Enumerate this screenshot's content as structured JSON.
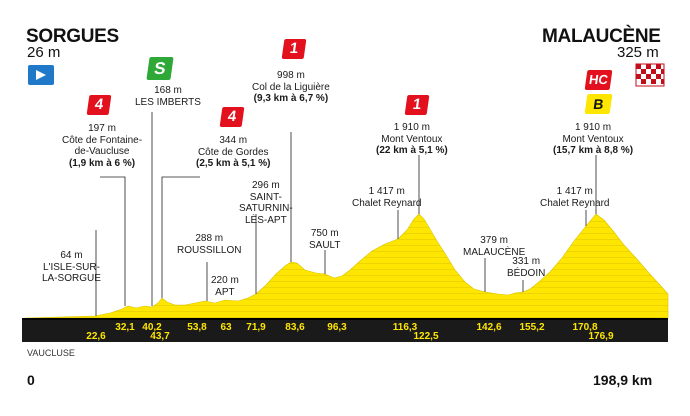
{
  "start": {
    "town": "SORGUES",
    "altitude": "26 m"
  },
  "finish": {
    "town": "MALAUCÈNE",
    "altitude": "325 m"
  },
  "department": "VAUCLUSE",
  "distance": {
    "start": "0",
    "end": "198,9 km"
  },
  "badges": {
    "sprint": "S",
    "cat4": "4",
    "cat1": "1",
    "hc": "HC",
    "bonus": "B"
  },
  "points": [
    {
      "id": "isle",
      "lines": [
        "64 m",
        "L'ISLE-SUR-",
        "LA-SORGUE"
      ]
    },
    {
      "id": "fontaine",
      "lines": [
        "197 m",
        "Côte de Fontaine-",
        "de-Vaucluse"
      ],
      "bold": "(1,9 km à 6 %)"
    },
    {
      "id": "imberts",
      "lines": [
        "168 m",
        "LES IMBERTS"
      ]
    },
    {
      "id": "gordes",
      "lines": [
        "344 m",
        "Côte de Gordes"
      ],
      "bold": "(2,5 km à 5,1 %)"
    },
    {
      "id": "roussillon",
      "lines": [
        "288 m",
        "ROUSSILLON"
      ]
    },
    {
      "id": "apt",
      "lines": [
        "220 m",
        "APT"
      ]
    },
    {
      "id": "saintsat",
      "lines": [
        "296 m",
        "SAINT-",
        "SATURNIN-",
        "LÈS-APT"
      ]
    },
    {
      "id": "liguiere",
      "lines": [
        "998 m",
        "Col de la Liguière"
      ],
      "bold": "(9,3 km à 6,7 %)"
    },
    {
      "id": "sault",
      "lines": [
        "750 m",
        "SAULT"
      ]
    },
    {
      "id": "reynard1",
      "lines": [
        "1 417 m",
        "Chalet Reynard"
      ]
    },
    {
      "id": "ventoux1",
      "lines": [
        "1 910 m",
        "Mont Ventoux"
      ],
      "bold": "(22 km à 5,1 %)"
    },
    {
      "id": "malaucene",
      "lines": [
        "379 m",
        "MALAUCÈNE"
      ]
    },
    {
      "id": "bedoin",
      "lines": [
        "331 m",
        "BÉDOIN"
      ]
    },
    {
      "id": "reynard2",
      "lines": [
        "1 417 m",
        "Chalet Reynard"
      ]
    },
    {
      "id": "ventoux2",
      "lines": [
        "1 910 m",
        "Mont Ventoux"
      ],
      "bold": "(15,7 km à 8,8 %)"
    }
  ],
  "km_marks_upper": [
    "32,1",
    "40,2",
    "53,8",
    "63",
    "71,9",
    "83,6",
    "96,3",
    "116,3",
    "142,6",
    "155,2",
    "170,8"
  ],
  "km_marks_lower": [
    "22,6",
    "43,7",
    "122,5",
    "176,9"
  ],
  "colors": {
    "yellow": "#ffe600",
    "red": "#e3101d",
    "green": "#2ea836",
    "blue": "#1f78c8",
    "dark": "#1a1a1a"
  }
}
